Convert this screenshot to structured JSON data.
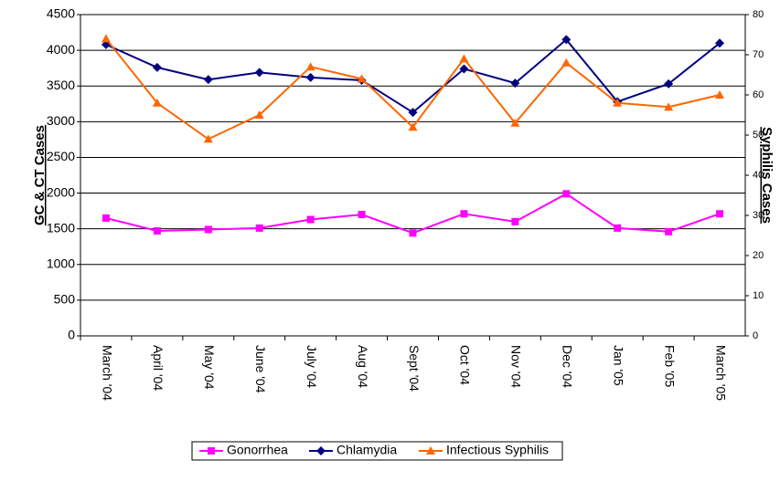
{
  "chart_data": {
    "type": "line",
    "y_label": "GC & CT Cases",
    "y2_label": "Syphilis Cases",
    "categories": [
      "March '04",
      "April '04",
      "May '04",
      "June '04",
      "July '04",
      "Aug '04",
      "Sept '04",
      "Oct '04",
      "Nov '04",
      "Dec '04",
      "Jan '05",
      "Feb '05",
      "March '05"
    ],
    "series": [
      {
        "name": "Gonorrhea",
        "color": "#ff00ff",
        "marker": "square",
        "values": [
          1650,
          1470,
          1490,
          1510,
          1630,
          1700,
          1440,
          1710,
          1600,
          1990,
          1510,
          1460,
          1710
        ]
      },
      {
        "name": "Chlamydia",
        "color": "#000080",
        "marker": "diamond",
        "values": [
          4080,
          3760,
          3590,
          3690,
          3620,
          3580,
          3130,
          3740,
          3540,
          4150,
          3280,
          3530,
          4100
        ]
      },
      {
        "name": "Infectious Syphilis",
        "color": "#ff6600",
        "marker": "triangle",
        "axis": "y2",
        "values": [
          74,
          58,
          49,
          55,
          67,
          64,
          52,
          69,
          53,
          68,
          58,
          57,
          60
        ]
      }
    ],
    "ylim": [
      0,
      4500
    ],
    "yticks": [
      0,
      500,
      1000,
      1500,
      2000,
      2500,
      3000,
      3500,
      4000,
      4500
    ],
    "y2lim": [
      0,
      80
    ],
    "y2ticks": [
      0,
      10,
      20,
      30,
      40,
      50,
      60,
      70,
      80
    ],
    "grid": true,
    "legend": "bottom"
  }
}
